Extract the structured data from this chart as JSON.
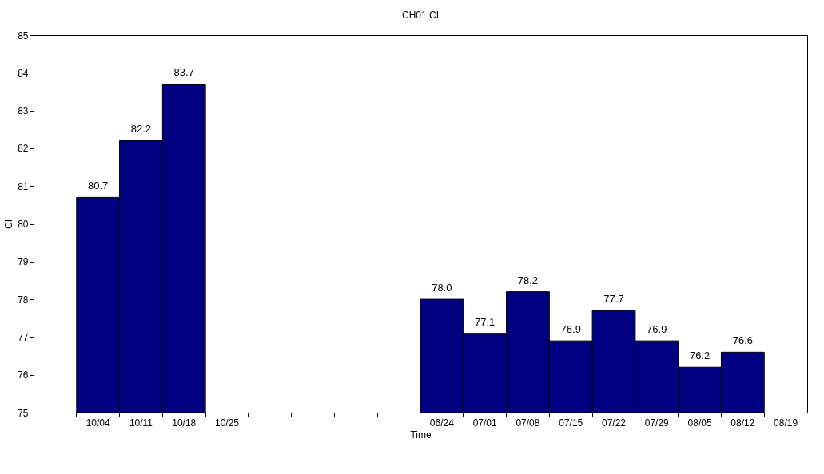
{
  "chart_data": {
    "type": "bar",
    "title": "CH01 CI",
    "xlabel": "Time",
    "ylabel": "CI",
    "categories": [
      "10/04",
      "10/11",
      "10/18",
      "10/25",
      null,
      null,
      null,
      null,
      "06/24",
      "07/01",
      "07/08",
      "07/15",
      "07/22",
      "07/29",
      "08/05",
      "08/12",
      "08/19"
    ],
    "values": [
      80.7,
      82.2,
      83.7,
      null,
      null,
      null,
      null,
      null,
      78.0,
      77.1,
      78.2,
      76.9,
      77.7,
      76.9,
      76.2,
      76.6,
      null
    ],
    "value_labels": [
      "80.7",
      "82.2",
      "83.7",
      null,
      null,
      null,
      null,
      null,
      "78.0",
      "77.1",
      "78.2",
      "76.9",
      "77.7",
      "76.9",
      "76.2",
      "76.6",
      null
    ],
    "color": "#000080",
    "ylim": [
      75,
      85
    ],
    "yticks": [
      75,
      76,
      77,
      78,
      79,
      80,
      81,
      82,
      83,
      84,
      85
    ],
    "grid": false
  }
}
